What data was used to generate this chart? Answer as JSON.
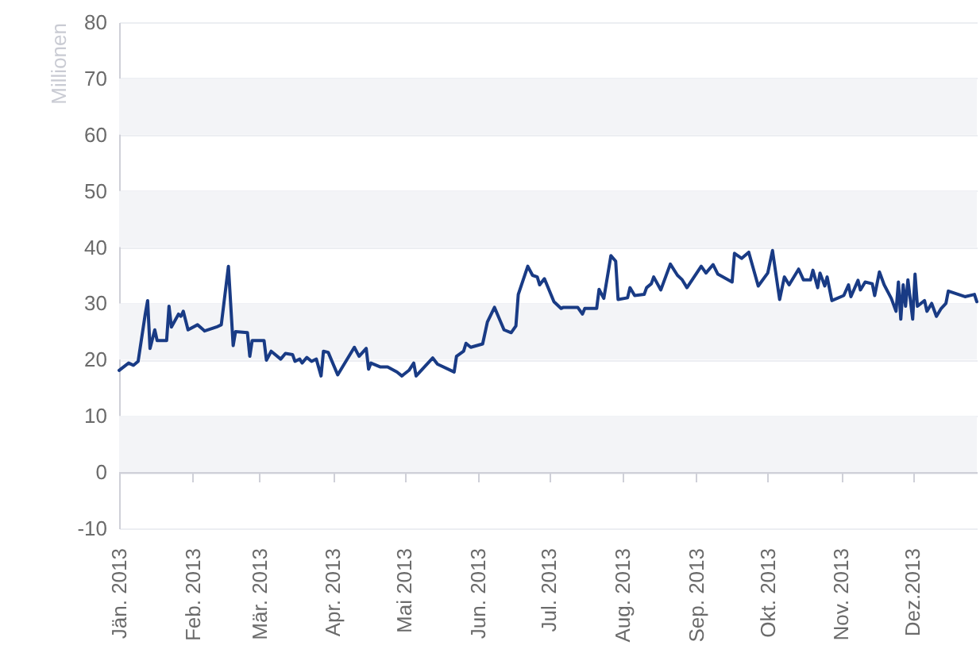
{
  "chart_data": {
    "type": "line",
    "ylabel": "Millionen",
    "x": [
      "2013-01-01",
      "2013-01-05",
      "2013-01-07",
      "2013-01-09",
      "2013-01-12",
      "2013-01-13",
      "2013-01-14",
      "2013-01-16",
      "2013-01-17",
      "2013-01-21",
      "2013-01-22",
      "2013-01-23",
      "2013-01-26",
      "2013-01-27",
      "2013-01-28",
      "2013-01-30",
      "2013-02-03",
      "2013-02-06",
      "2013-02-11",
      "2013-02-13",
      "2013-02-16",
      "2013-02-18",
      "2013-02-19",
      "2013-02-24",
      "2013-02-25",
      "2013-02-26",
      "2013-03-03",
      "2013-03-04",
      "2013-03-06",
      "2013-03-10",
      "2013-03-12",
      "2013-03-15",
      "2013-03-16",
      "2013-03-18",
      "2013-03-19",
      "2013-03-21",
      "2013-03-23",
      "2013-03-25",
      "2013-03-27",
      "2013-03-28",
      "2013-03-30",
      "2013-04-03",
      "2013-04-10",
      "2013-04-12",
      "2013-04-15",
      "2013-04-16",
      "2013-04-17",
      "2013-04-21",
      "2013-04-24",
      "2013-04-28",
      "2013-04-30",
      "2013-05-03",
      "2013-05-05",
      "2013-05-06",
      "2013-05-13",
      "2013-05-15",
      "2013-05-22",
      "2013-05-23",
      "2013-05-26",
      "2013-05-27",
      "2013-05-29",
      "2013-06-03",
      "2013-06-05",
      "2013-06-08",
      "2013-06-12",
      "2013-06-15",
      "2013-06-17",
      "2013-06-18",
      "2013-06-22",
      "2013-06-24",
      "2013-06-26",
      "2013-06-27",
      "2013-06-29",
      "2013-07-03",
      "2013-07-06",
      "2013-07-07",
      "2013-07-13",
      "2013-07-15",
      "2013-07-16",
      "2013-07-21",
      "2013-07-22",
      "2013-07-24",
      "2013-07-27",
      "2013-07-29",
      "2013-07-30",
      "2013-08-03",
      "2013-08-04",
      "2013-08-06",
      "2013-08-10",
      "2013-08-11",
      "2013-08-13",
      "2013-08-14",
      "2013-08-17",
      "2013-08-21",
      "2013-08-24",
      "2013-08-26",
      "2013-08-28",
      "2013-08-31",
      "2013-09-03",
      "2013-09-05",
      "2013-09-08",
      "2013-09-10",
      "2013-09-16",
      "2013-09-17",
      "2013-09-20",
      "2013-09-23",
      "2013-09-27",
      "2013-10-01",
      "2013-10-03",
      "2013-10-06",
      "2013-10-08",
      "2013-10-10",
      "2013-10-14",
      "2013-10-16",
      "2013-10-19",
      "2013-10-20",
      "2013-10-22",
      "2013-10-23",
      "2013-10-25",
      "2013-10-26",
      "2013-10-28",
      "2013-11-02",
      "2013-11-04",
      "2013-11-05",
      "2013-11-08",
      "2013-11-09",
      "2013-11-11",
      "2013-11-14",
      "2013-11-15",
      "2013-11-17",
      "2013-11-19",
      "2013-11-22",
      "2013-11-24",
      "2013-11-25",
      "2013-11-26",
      "2013-11-27",
      "2013-11-28",
      "2013-11-29",
      "2013-12-01",
      "2013-12-02",
      "2013-12-03",
      "2013-12-06",
      "2013-12-07",
      "2013-12-09",
      "2013-12-11",
      "2013-12-13",
      "2013-12-15",
      "2013-12-16",
      "2013-12-23",
      "2013-12-27",
      "2013-12-28"
    ],
    "series": [
      {
        "color": "#193b85",
        "values": [
          18.1,
          19.4,
          19.0,
          19.7,
          28.1,
          30.5,
          22.0,
          25.3,
          23.4,
          23.4,
          29.5,
          25.8,
          28.1,
          27.7,
          28.6,
          25.3,
          26.2,
          25.1,
          25.8,
          26.2,
          36.6,
          22.5,
          25.0,
          24.8,
          20.6,
          23.4,
          23.4,
          19.9,
          21.5,
          20.1,
          21.1,
          20.9,
          19.7,
          20.1,
          19.4,
          20.4,
          19.7,
          20.1,
          17.1,
          21.5,
          21.3,
          17.3,
          22.2,
          20.6,
          22.0,
          18.3,
          19.4,
          18.7,
          18.7,
          17.8,
          17.1,
          18.1,
          19.4,
          17.1,
          20.3,
          19.2,
          17.8,
          20.6,
          21.5,
          22.9,
          22.2,
          22.8,
          26.7,
          29.3,
          25.3,
          24.8,
          26.0,
          31.6,
          36.6,
          35.0,
          34.7,
          33.3,
          34.4,
          30.3,
          29.1,
          29.3,
          29.3,
          28.1,
          29.1,
          29.1,
          32.5,
          30.9,
          38.5,
          37.5,
          30.7,
          31.0,
          32.8,
          31.4,
          31.6,
          32.8,
          33.5,
          34.7,
          32.4,
          37.0,
          35.0,
          34.2,
          32.8,
          34.7,
          36.6,
          35.4,
          36.9,
          35.2,
          33.8,
          38.9,
          38.0,
          39.1,
          33.1,
          35.4,
          39.4,
          30.7,
          34.7,
          33.3,
          36.1,
          34.2,
          34.2,
          35.9,
          32.8,
          35.4,
          33.1,
          34.7,
          30.5,
          31.4,
          33.3,
          31.2,
          34.1,
          32.4,
          33.8,
          33.5,
          31.4,
          35.6,
          33.3,
          30.9,
          28.6,
          33.8,
          27.2,
          33.3,
          29.5,
          34.2,
          27.2,
          35.2,
          29.5,
          30.5,
          28.6,
          30.0,
          27.7,
          29.1,
          30.0,
          32.2,
          31.2,
          31.6,
          30.3
        ]
      }
    ],
    "xlim": [
      "2013-01-01",
      "2013-12-28"
    ],
    "xticks": [
      {
        "value": "2013-01-01",
        "label": "Jän. 2013"
      },
      {
        "value": "2013-02-01",
        "label": "Feb. 2013"
      },
      {
        "value": "2013-03-01",
        "label": "Mär. 2013"
      },
      {
        "value": "2013-04-01",
        "label": "Apr. 2013"
      },
      {
        "value": "2013-05-01",
        "label": "Mai 2013"
      },
      {
        "value": "2013-06-01",
        "label": "Jun. 2013"
      },
      {
        "value": "2013-07-01",
        "label": "Jul. 2013"
      },
      {
        "value": "2013-08-01",
        "label": "Aug. 2013"
      },
      {
        "value": "2013-09-01",
        "label": "Sep. 2013"
      },
      {
        "value": "2013-10-01",
        "label": "Okt. 2013"
      },
      {
        "value": "2013-11-01",
        "label": "Nov. 2013"
      },
      {
        "value": "2013-12-01",
        "label": "Dez.2013"
      }
    ],
    "ylim": [
      -10,
      80
    ],
    "yticks": [
      -10,
      0,
      10,
      20,
      30,
      40,
      50,
      60,
      70,
      80
    ],
    "bands": [
      {
        "axis": "y",
        "from": 0,
        "to": 10,
        "color": "#f3f4f7"
      },
      {
        "axis": "y",
        "from": 20,
        "to": 30,
        "color": "#f3f4f7"
      },
      {
        "axis": "y",
        "from": 40,
        "to": 50,
        "color": "#f3f4f7"
      },
      {
        "axis": "y",
        "from": 60,
        "to": 70,
        "color": "#f3f4f7"
      }
    ],
    "grid": "y",
    "marker": "none",
    "line_style": "solid"
  }
}
